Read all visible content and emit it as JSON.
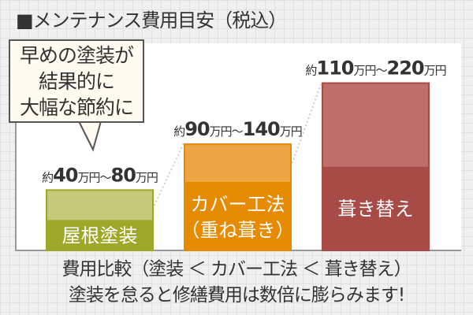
{
  "title": "■メンテナンス費用目安（税込）",
  "callout": [
    "早めの塗装が",
    "結果的に",
    "大幅な節約に"
  ],
  "chart_data": {
    "type": "bar",
    "categories": [
      "屋根塗装",
      "カバー工法（重ね葺き）",
      "葺き替え"
    ],
    "category_lines": [
      [
        "屋根塗装"
      ],
      [
        "カバー工法",
        "（重ね葺き）"
      ],
      [
        "葺き替え"
      ]
    ],
    "series": [
      {
        "values_min": [
          40,
          90,
          110
        ],
        "values_max": [
          80,
          140,
          220
        ]
      }
    ],
    "unit": "万円",
    "labels": [
      {
        "pre": "約",
        "min": "40",
        "u1": "万円～",
        "max": "80",
        "u2": "万円"
      },
      {
        "pre": "約",
        "min": "90",
        "u1": "万円～",
        "max": "140",
        "u2": "万円"
      },
      {
        "pre": "約",
        "min": "110",
        "u1": "万円～",
        "max": "220",
        "u2": "万円"
      }
    ],
    "colors": {
      "dark": [
        "#9ea828",
        "#e68a00",
        "#a84a45"
      ],
      "light": [
        "#c5c97a",
        "#eda645",
        "#bf6e6a"
      ]
    },
    "ylim": [
      0,
      270
    ],
    "grid": false
  },
  "footer": [
    "費用比較（塗装 ＜ カバー工法 ＜ 葺き替え）",
    "塗装を怠ると修繕費用は数倍に膨らみます!"
  ]
}
